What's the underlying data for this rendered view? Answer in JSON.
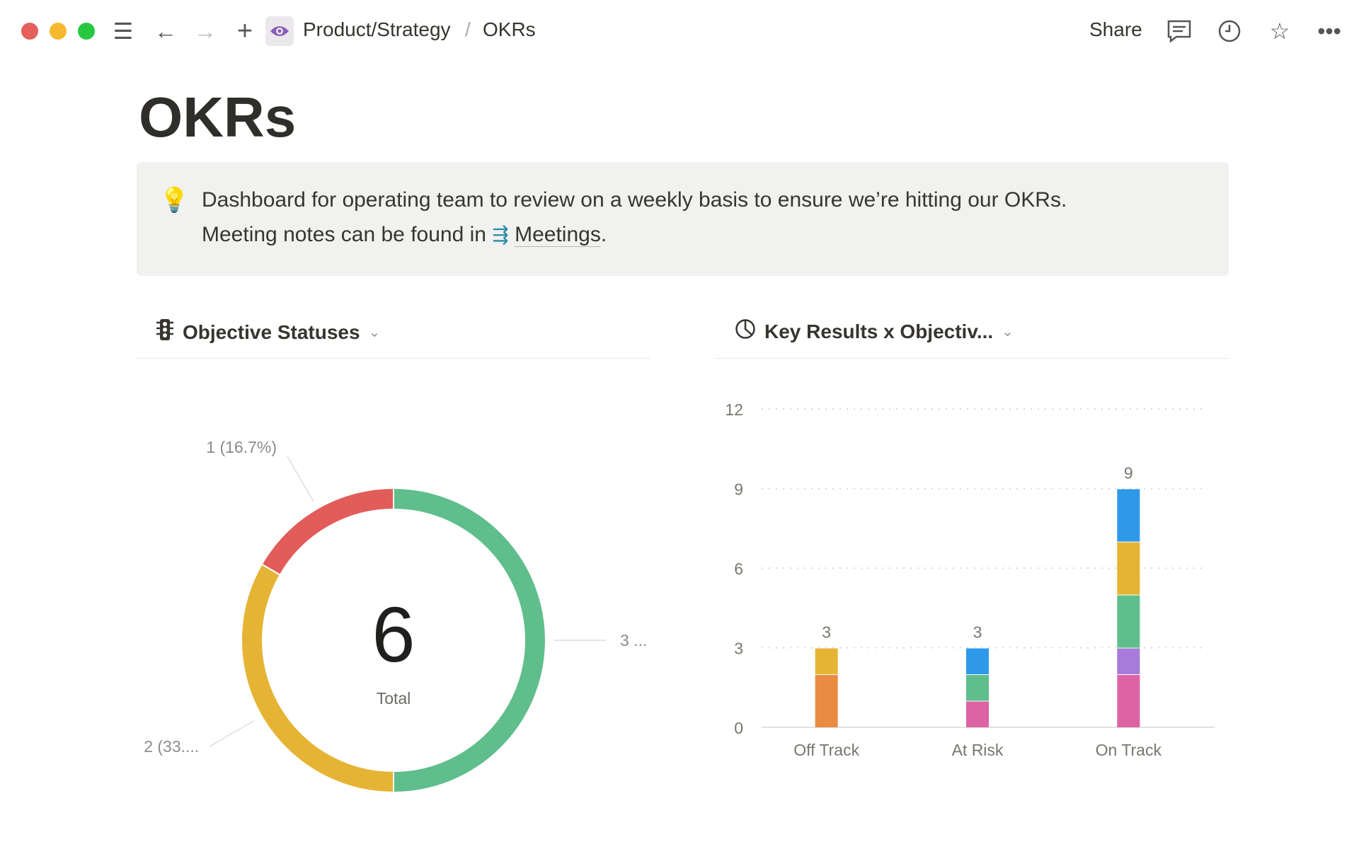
{
  "topbar": {
    "breadcrumb_parent": "Product/Strategy",
    "breadcrumb_sep": "/",
    "breadcrumb_current": "OKRs",
    "share_label": "Share",
    "icons": [
      "menu-icon",
      "back-arrow-icon",
      "forward-arrow-icon",
      "plus-icon",
      "eye-icon",
      "comment-icon",
      "clock-icon",
      "star-icon",
      "more-icon"
    ]
  },
  "page": {
    "title": "OKRs",
    "callout": {
      "icon": "lightbulb-icon",
      "line1": "Dashboard for operating team to review on a weekly basis to ensure we’re hitting our OKRs.",
      "line2_prefix": "Meeting notes can be found in",
      "link_text": "Meetings",
      "line2_suffix": "."
    }
  },
  "left_panel": {
    "title": "Objective Statuses",
    "icon": "traffic-light-icon"
  },
  "right_panel": {
    "title": "Key Results x Objectiv...",
    "icon": "pie-chart-icon"
  },
  "chart_data": [
    {
      "type": "pie",
      "donut": true,
      "center_value": "6",
      "center_label": "Total",
      "slices": [
        {
          "value": 3,
          "color": "#5fbe8c",
          "label": "3 ..."
        },
        {
          "value": 2,
          "color": "#e6b434",
          "label": "2 (33...."
        },
        {
          "value": 1,
          "color": "#e25c5a",
          "label": "1 (16.7%)"
        }
      ]
    },
    {
      "type": "bar",
      "stacked": true,
      "categories": [
        "Off Track",
        "At Risk",
        "On Track"
      ],
      "totals": [
        "3",
        "3",
        "9"
      ],
      "ylim": [
        0,
        12
      ],
      "yticks": [
        "0",
        "3",
        "6",
        "9",
        "12"
      ],
      "grid": true,
      "stacks": [
        [
          {
            "value": 2,
            "color": "#e98c42"
          },
          {
            "value": 1,
            "color": "#e6b434"
          }
        ],
        [
          {
            "value": 1,
            "color": "#dd63a4"
          },
          {
            "value": 1,
            "color": "#5fbe8c"
          },
          {
            "value": 1,
            "color": "#2e98e9"
          }
        ],
        [
          {
            "value": 2,
            "color": "#dd63a4"
          },
          {
            "value": 1,
            "color": "#a67bd9"
          },
          {
            "value": 2,
            "color": "#5fbe8c"
          },
          {
            "value": 2,
            "color": "#e6b434"
          },
          {
            "value": 2,
            "color": "#2e98e9"
          }
        ]
      ]
    }
  ]
}
